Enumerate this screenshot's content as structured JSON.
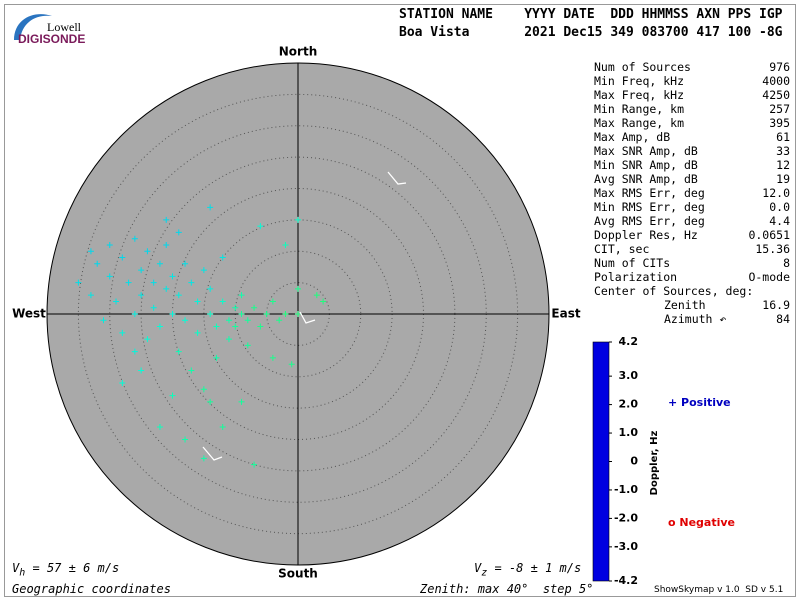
{
  "header": {
    "line1": "STATION NAME    YYYY DATE  DDD HHMMSS AXN PPS IGP",
    "line2": "Boa Vista       2021 Dec15 349 083700 417 100 -8G"
  },
  "logo": {
    "top": "Lowell",
    "bottom": "DIGISONDE"
  },
  "stats": [
    [
      "Num of Sources",
      "976"
    ],
    [
      "Min Freq, kHz",
      "4000"
    ],
    [
      "Max Freq, kHz",
      "4250"
    ],
    [
      "Min Range, km",
      "257"
    ],
    [
      "Max Range, km",
      "395"
    ],
    [
      "Max Amp, dB",
      "61"
    ],
    [
      "Max SNR Amp, dB",
      "33"
    ],
    [
      "Min SNR Amp, dB",
      "12"
    ],
    [
      "Avg SNR Amp, dB",
      "19"
    ],
    [
      "Max RMS Err, deg",
      "12.0"
    ],
    [
      "Min RMS Err, deg",
      "0.0"
    ],
    [
      "Avg RMS Err, deg",
      "4.4"
    ],
    [
      "Doppler Res, Hz",
      "0.0651"
    ],
    [
      "CIT, sec",
      "15.36"
    ],
    [
      "Num of CITs",
      "8"
    ],
    [
      "Polarization",
      "O-mode"
    ]
  ],
  "center_title": "Center of Sources, deg:",
  "center": [
    [
      "Zenith",
      "16.9"
    ],
    [
      "Azimuth ↶",
      "84"
    ]
  ],
  "footer": {
    "vh_sym": "V",
    "vh_sub": "h",
    "vh_text": " = 57 ± 6 m/s",
    "vz_sym": "V",
    "vz_sub": "z",
    "vz_text": " = -8 ± 1 m/s",
    "coords": "Geographic coordinates",
    "zenith": "Zenith: max 40°  step 5°",
    "version": "ShowSkymap v 1.0  SD v 5.1"
  },
  "chart_data": {
    "type": "skymap",
    "directions": {
      "north": "North",
      "south": "South",
      "east": "East",
      "west": "West"
    },
    "rlim": [
      0,
      40
    ],
    "rticks": [
      5,
      10,
      15,
      20,
      25,
      30,
      35,
      40
    ],
    "x": [
      -35,
      -33,
      -32,
      -31,
      -30,
      -30,
      -29,
      -28,
      -28,
      -27,
      -26,
      -26,
      -25,
      -25,
      -24,
      -24,
      -23,
      -23,
      -22,
      -22,
      -21,
      -21,
      -20,
      -20,
      -19,
      -19,
      -18,
      -18,
      -17,
      -17,
      -16,
      -16,
      -15,
      -15,
      -14,
      -14,
      -13,
      -13,
      -12,
      -12,
      -11,
      -11,
      -10,
      -10,
      -9,
      -9,
      -8,
      -8,
      -7,
      -6,
      -5,
      -4,
      -3,
      -2,
      0,
      0,
      0,
      -1,
      4,
      3,
      -20,
      -22,
      -18,
      -14,
      -9,
      -25,
      -28,
      -15,
      -7,
      -21,
      -14,
      -6,
      -2,
      -33,
      -26,
      -19,
      -12,
      -4
    ],
    "y": [
      5,
      3,
      8,
      -1,
      6,
      11,
      2,
      9,
      -3,
      5,
      12,
      0,
      7,
      3,
      -4,
      10,
      5,
      1,
      8,
      -2,
      4,
      11,
      6,
      0,
      -6,
      3,
      8,
      -1,
      5,
      -9,
      2,
      -3,
      7,
      -12,
      0,
      4,
      -2,
      -7,
      2,
      9,
      -1,
      -4,
      1,
      -2,
      0,
      3,
      -1,
      -5,
      1,
      -2,
      0,
      2,
      -1,
      0,
      0,
      4,
      15,
      -8,
      2,
      3,
      -13,
      -18,
      -20,
      -14,
      -14,
      -9,
      -11,
      -23,
      -24,
      15,
      17,
      14,
      11,
      10,
      -6,
      13,
      -18,
      -7
    ],
    "doppler": [
      1.4,
      1.3,
      1.5,
      1.2,
      1.4,
      1.5,
      1.3,
      1.5,
      1.1,
      1.4,
      1.5,
      1.2,
      1.4,
      1.3,
      1.0,
      1.5,
      1.4,
      1.2,
      1.4,
      1.0,
      1.3,
      1.5,
      1.3,
      1.1,
      0.8,
      1.2,
      1.4,
      1.0,
      1.3,
      0.7,
      1.1,
      0.9,
      1.3,
      0.6,
      0.9,
      1.2,
      0.8,
      0.7,
      0.9,
      1.3,
      0.7,
      0.7,
      0.7,
      0.6,
      0.6,
      0.7,
      0.6,
      0.6,
      0.5,
      0.5,
      0.5,
      0.5,
      0.5,
      0.4,
      0.4,
      0.5,
      0.9,
      0.5,
      0.4,
      0.4,
      0.8,
      0.8,
      0.7,
      0.6,
      0.6,
      1.0,
      1.0,
      0.7,
      0.6,
      1.5,
      1.4,
      1.0,
      0.8,
      1.5,
      1.1,
      1.5,
      0.6,
      0.5
    ],
    "colorbar": {
      "label": "Doppler, Hz",
      "lim": [
        -4.2,
        4.2
      ],
      "ticks": [
        4.2,
        {
          "value": 3,
          "label": "3.0"
        },
        {
          "value": 2,
          "label": "2.0"
        },
        {
          "value": 1,
          "label": "1.0"
        },
        0,
        {
          "value": -1,
          "label": "-1.0"
        },
        {
          "value": -2,
          "label": "-2.0"
        },
        {
          "value": -3,
          "label": "-3.0"
        },
        -4.2
      ],
      "stops": [
        {
          "value": 4.2,
          "color": "#0000e0"
        },
        {
          "value": 3,
          "color": "#0050ff"
        },
        {
          "value": 2,
          "color": "#00b0ff"
        },
        {
          "value": 1,
          "color": "#00ffd8"
        },
        {
          "value": 0,
          "color": "#30ff40"
        },
        {
          "value": -1,
          "color": "#e8ff00"
        },
        {
          "value": -2,
          "color": "#ffa000"
        },
        {
          "value": -3,
          "color": "#ff4000"
        },
        {
          "value": -4.2,
          "color": "#e00000"
        }
      ]
    },
    "legend": {
      "positive": "+ Positive",
      "negative": "o Negative",
      "positive_color": "#0000c0",
      "negative_color": "#e00000"
    },
    "disk_color": "#a9a9a9"
  }
}
